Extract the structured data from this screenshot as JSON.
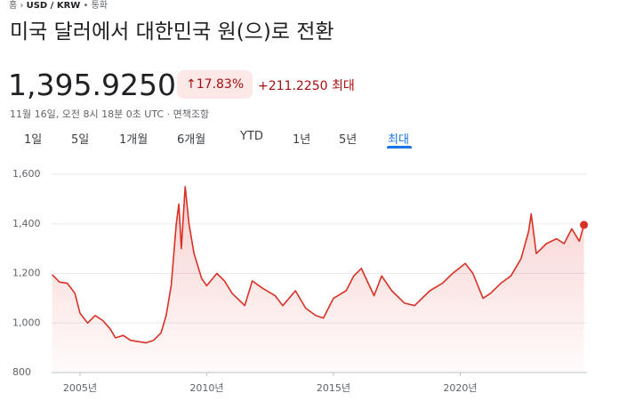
{
  "breadcrumb": [
    "홈",
    "USD / KRW",
    "통화"
  ],
  "title": "미국 달러에서 대한민국 원(으)로 전환",
  "price": "1,395.9250",
  "change_percent": "17.83%",
  "change": "+211.2250",
  "range_label": "최대",
  "timestamp": "11월 16일, 오전 8시 18분 0초 UTC",
  "disclaimer": "면책조항",
  "tabs": [
    "1일",
    "5일",
    "1개월",
    "6개월",
    "YTD",
    "1년",
    "5년",
    "최대"
  ],
  "chart_data": {
    "type": "area",
    "color": "#d93025",
    "grid": true,
    "x": [
      2003.9,
      2004.2,
      2004.5,
      2004.8,
      2005.0,
      2005.3,
      2005.6,
      2005.9,
      2006.2,
      2006.4,
      2006.7,
      2007.0,
      2007.3,
      2007.6,
      2007.9,
      2008.2,
      2008.4,
      2008.6,
      2008.8,
      2008.9,
      2009.0,
      2009.15,
      2009.3,
      2009.5,
      2009.8,
      2010.0,
      2010.4,
      2010.7,
      2011.0,
      2011.5,
      2011.8,
      2012.2,
      2012.7,
      2013.0,
      2013.5,
      2013.9,
      2014.3,
      2014.6,
      2015.0,
      2015.5,
      2015.8,
      2016.1,
      2016.6,
      2016.9,
      2017.3,
      2017.8,
      2018.2,
      2018.8,
      2019.3,
      2019.7,
      2020.2,
      2020.5,
      2020.9,
      2021.2,
      2021.6,
      2022.0,
      2022.4,
      2022.7,
      2022.8,
      2023.0,
      2023.4,
      2023.8,
      2024.1,
      2024.4,
      2024.7,
      2024.88
    ],
    "values": [
      1195,
      1165,
      1160,
      1120,
      1040,
      1000,
      1030,
      1010,
      975,
      940,
      950,
      930,
      925,
      920,
      930,
      960,
      1030,
      1150,
      1400,
      1480,
      1300,
      1550,
      1400,
      1280,
      1180,
      1150,
      1200,
      1170,
      1120,
      1070,
      1170,
      1140,
      1110,
      1070,
      1130,
      1060,
      1030,
      1020,
      1100,
      1130,
      1190,
      1220,
      1110,
      1190,
      1130,
      1080,
      1070,
      1130,
      1160,
      1200,
      1240,
      1200,
      1100,
      1120,
      1160,
      1190,
      1260,
      1370,
      1440,
      1280,
      1320,
      1340,
      1320,
      1380,
      1330,
      1395.925
    ],
    "xlim": [
      2003.88,
      2025.0
    ],
    "xticks": [
      {
        "value": 2005,
        "label": "2005년"
      },
      {
        "value": 2010,
        "label": "2010년"
      },
      {
        "value": 2015,
        "label": "2015년"
      },
      {
        "value": 2020,
        "label": "2020년"
      }
    ],
    "ylim": [
      800,
      1600
    ],
    "yticks": [
      {
        "value": 800,
        "label": "800"
      },
      {
        "value": 1000,
        "label": "1,000"
      },
      {
        "value": 1200,
        "label": "1,200"
      },
      {
        "value": 1400,
        "label": "1,400"
      },
      {
        "value": 1600,
        "label": "1,600"
      }
    ]
  }
}
